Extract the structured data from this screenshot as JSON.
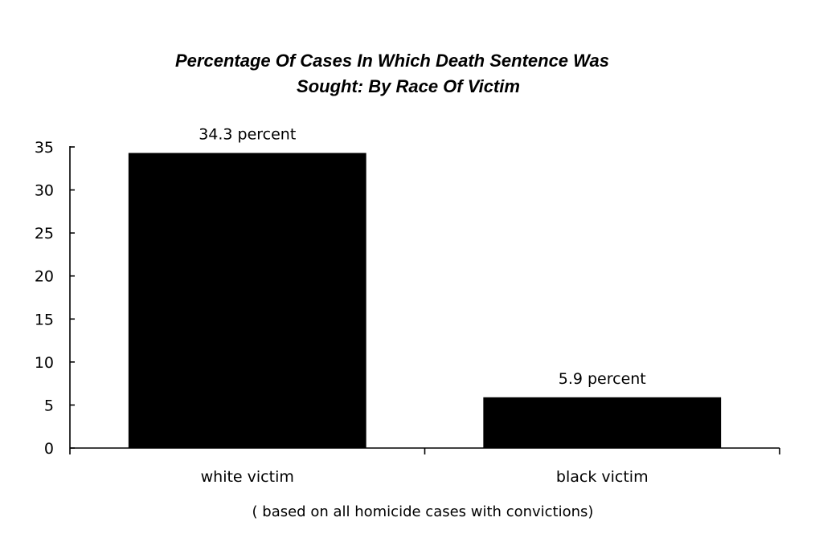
{
  "chart_data": {
    "type": "bar",
    "title_lines": [
      "Percentage Of Cases In Which Death Sentence Was",
      "Sought:  By Race Of Victim"
    ],
    "categories": [
      "white victim",
      "black victim"
    ],
    "values": [
      34.3,
      5.9
    ],
    "data_labels": [
      "34.3 percent",
      "5.9 percent"
    ],
    "yticks": [
      0,
      5,
      10,
      15,
      20,
      25,
      30,
      35
    ],
    "ylim": [
      0,
      35
    ],
    "xlabel": "( based on all homicide cases with convictions)",
    "ylabel": "",
    "grid": false,
    "legend": "none",
    "bar_color": "#000000"
  }
}
